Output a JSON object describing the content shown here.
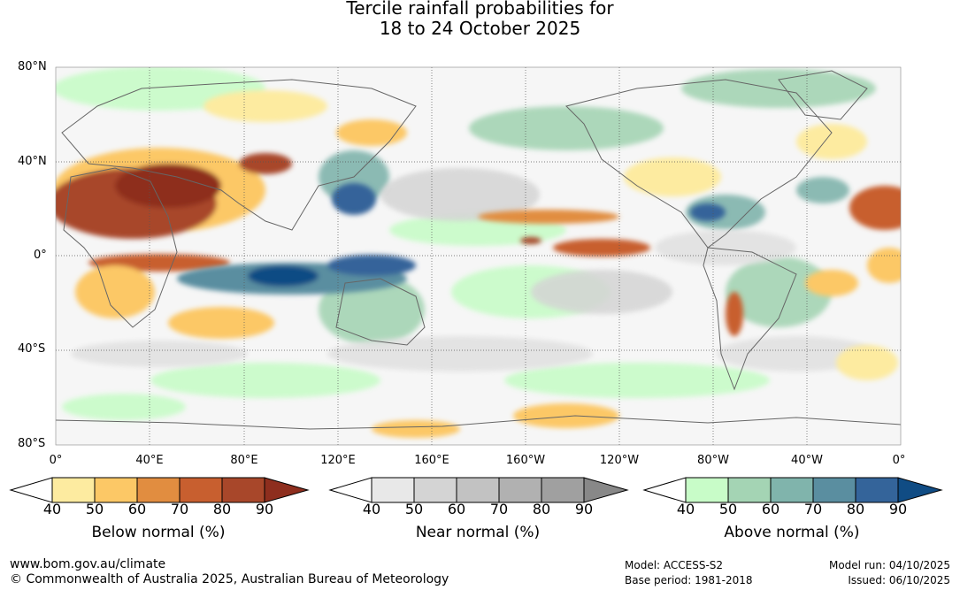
{
  "title_line1": "Tercile rainfall probabilities for",
  "title_line2": "18 to 24 October 2025",
  "lat_labels": [
    "80°N",
    "40°N",
    "0°",
    "40°S",
    "80°S"
  ],
  "lon_labels": [
    "0°",
    "40°E",
    "80°E",
    "120°E",
    "160°E",
    "160°W",
    "120°W",
    "80°W",
    "40°W",
    "0°"
  ],
  "colorbars": [
    {
      "title": "Below normal (%)",
      "ticks": [
        "40",
        "50",
        "60",
        "70",
        "80",
        "90"
      ],
      "colors": [
        "#ffffff",
        "#fdeba0",
        "#fcc866",
        "#e18d40",
        "#c85f2f",
        "#a8472a",
        "#8e2e1e"
      ]
    },
    {
      "title": "Near normal (%)",
      "ticks": [
        "40",
        "50",
        "60",
        "70",
        "80",
        "90"
      ],
      "colors": [
        "#ffffff",
        "#e8e8e8",
        "#d4d4d4",
        "#c2c2c2",
        "#b1b1b1",
        "#a0a0a0",
        "#888888"
      ]
    },
    {
      "title": "Above normal (%)",
      "ticks": [
        "40",
        "50",
        "60",
        "70",
        "80",
        "90"
      ],
      "colors": [
        "#ffffff",
        "#c8fcc8",
        "#a4d4b4",
        "#80b4ac",
        "#5a8ea0",
        "#34649a",
        "#104c84"
      ]
    }
  ],
  "footer": {
    "website": "www.bom.gov.au/climate",
    "copyright": "© Commonwealth of Australia 2025, Australian Bureau of Meteorology",
    "model": "Model: ACCESS-S2",
    "base_period": "Base period: 1981-2018",
    "model_run": "Model run: 04/10/2025",
    "issued": "Issued: 06/10/2025"
  },
  "map_colors": {
    "ocean_base": "#f6f6f6",
    "coastline": "#666666",
    "gridline": "#555555"
  }
}
